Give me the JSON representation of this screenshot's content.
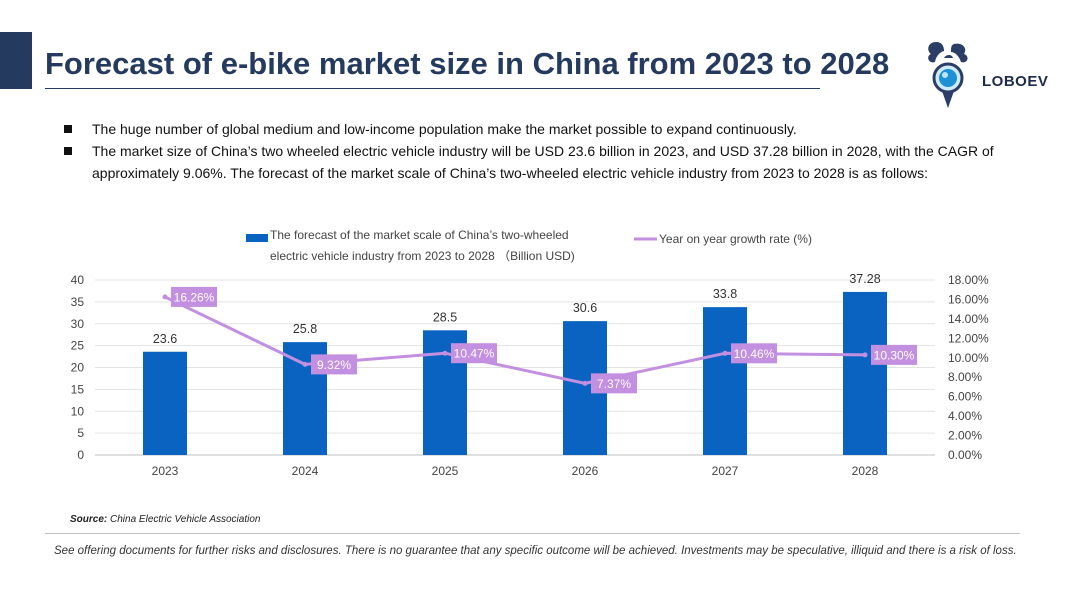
{
  "header": {
    "title": "Forecast of e-bike market size in China from 2023 to 2028",
    "logo_text": "LOBOEV",
    "accent_color": "#243a5e"
  },
  "bullets": [
    "The huge number of global medium and low-income population make the market possible to expand continuously.",
    "The market size of China’s two wheeled electric vehicle industry will be USD 23.6 billion in 2023, and USD 37.28 billion in 2028, with the CAGR of approximately 9.06%. The forecast of the market scale of China’s two-wheeled electric vehicle industry from 2023 to 2028 is as follows:"
  ],
  "chart_data": {
    "type": "bar",
    "categories": [
      "2023",
      "2024",
      "2025",
      "2026",
      "2027",
      "2028"
    ],
    "series": [
      {
        "name": "The forecast of the market scale of China’s two-wheeled electric vehicle industry from 2023 to 2028 （Billion USD)",
        "legend_lines": [
          "The forecast of the market scale of China’s two-wheeled",
          "electric vehicle industry from 2023 to 2028 （Billion USD)"
        ],
        "type": "bar",
        "axis": "left",
        "color": "#0b63c1",
        "values": [
          23.6,
          25.8,
          28.5,
          30.6,
          33.8,
          37.28
        ],
        "labels": [
          "23.6",
          "25.8",
          "28.5",
          "30.6",
          "33.8",
          "37.28"
        ]
      },
      {
        "name": "Year on year growth rate (%)",
        "type": "line",
        "axis": "right",
        "color": "#c38fe0",
        "values": [
          16.26,
          9.32,
          10.47,
          7.37,
          10.46,
          10.3
        ],
        "labels": [
          "16.26%",
          "9.32%",
          "10.47%",
          "7.37%",
          "10.46%",
          "10.30%"
        ]
      }
    ],
    "y_left": {
      "min": 0,
      "max": 40,
      "ticks": [
        "0",
        "5",
        "10",
        "15",
        "20",
        "25",
        "30",
        "35",
        "40"
      ]
    },
    "y_right": {
      "min": 0,
      "max": 18,
      "ticks": [
        "0.00%",
        "2.00%",
        "4.00%",
        "6.00%",
        "8.00%",
        "10.00%",
        "12.00%",
        "14.00%",
        "16.00%",
        "18.00%"
      ]
    },
    "grid": true,
    "legend_position": "top"
  },
  "source": {
    "label": "Source:",
    "text": "China Electric Vehicle Association"
  },
  "disclaimer": "See offering documents for further risks and disclosures. There is no guarantee that any specific outcome will be achieved. Investments may be speculative, illiquid and there is a risk of loss."
}
